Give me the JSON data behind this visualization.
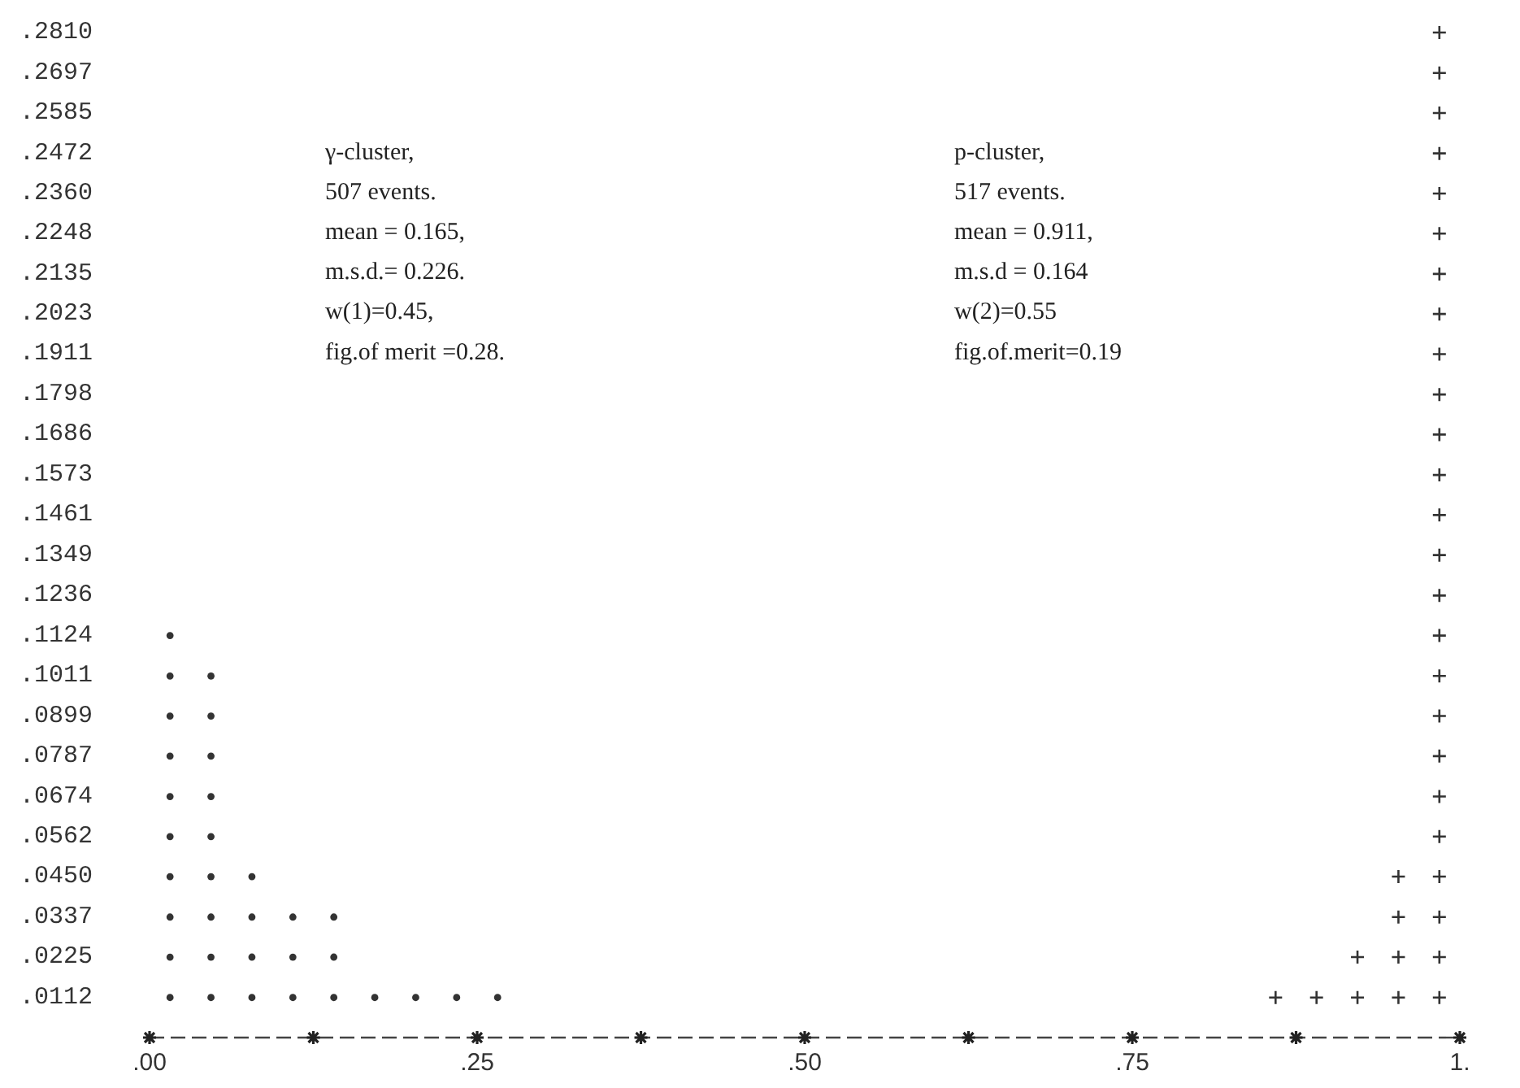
{
  "chart_data": {
    "type": "scatter",
    "series": [
      {
        "color": "#333333",
        "marker": "circle",
        "x": [
          0.015625,
          0.015625,
          0.015625,
          0.015625,
          0.015625,
          0.015625,
          0.015625,
          0.015625,
          0.015625,
          0.015625,
          0.046875,
          0.046875,
          0.046875,
          0.046875,
          0.046875,
          0.046875,
          0.046875,
          0.046875,
          0.046875,
          0.078125,
          0.078125,
          0.078125,
          0.078125,
          0.109375,
          0.109375,
          0.109375,
          0.140625,
          0.140625,
          0.140625,
          0.171875,
          0.203125,
          0.234375,
          0.265625
        ],
        "values": [
          0.0112,
          0.0225,
          0.0337,
          0.045,
          0.0562,
          0.0674,
          0.0787,
          0.0899,
          0.1011,
          0.1124,
          0.0112,
          0.0225,
          0.0337,
          0.045,
          0.0562,
          0.0674,
          0.0787,
          0.0899,
          0.1011,
          0.0112,
          0.0225,
          0.0337,
          0.045,
          0.0112,
          0.0225,
          0.0337,
          0.0112,
          0.0225,
          0.0337,
          0.0112,
          0.0112,
          0.0112,
          0.0112
        ]
      },
      {
        "color": "#333333",
        "marker": "cross",
        "x": [
          0.859375,
          0.890625,
          0.921875,
          0.921875,
          0.953125,
          0.953125,
          0.953125,
          0.953125,
          0.984375,
          0.984375,
          0.984375,
          0.984375,
          0.984375,
          0.984375,
          0.984375,
          0.984375,
          0.984375,
          0.984375,
          0.984375,
          0.984375,
          0.984375,
          0.984375,
          0.984375,
          0.984375,
          0.984375,
          0.984375,
          0.984375,
          0.984375,
          0.984375,
          0.984375,
          0.984375,
          0.984375,
          0.984375
        ],
        "values": [
          0.0112,
          0.0112,
          0.0112,
          0.0225,
          0.0112,
          0.0225,
          0.0337,
          0.045,
          0.0112,
          0.0225,
          0.0337,
          0.045,
          0.0562,
          0.0674,
          0.0787,
          0.0899,
          0.1011,
          0.1124,
          0.1236,
          0.1349,
          0.1461,
          0.1573,
          0.1686,
          0.1798,
          0.1911,
          0.2023,
          0.2135,
          0.2248,
          0.236,
          0.2472,
          0.2585,
          0.2697,
          0.281
        ]
      }
    ],
    "xlim": [
      0,
      1
    ],
    "ylim": [
      0,
      0.281
    ],
    "xticks": [
      {
        "value": 0,
        "label": ".00"
      },
      {
        "value": 0.125,
        "label": null
      },
      {
        "value": 0.25,
        "label": ".25"
      },
      {
        "value": 0.375,
        "label": null
      },
      {
        "value": 0.5,
        "label": ".50"
      },
      {
        "value": 0.625,
        "label": null
      },
      {
        "value": 0.75,
        "label": ".75"
      },
      {
        "value": 0.875,
        "label": null
      },
      {
        "value": 1,
        "label": "1."
      }
    ],
    "yticks": [
      {
        "value": 0.0112,
        "label": ".0112"
      },
      {
        "value": 0.0225,
        "label": ".0225"
      },
      {
        "value": 0.0337,
        "label": ".0337"
      },
      {
        "value": 0.045,
        "label": ".0450"
      },
      {
        "value": 0.0562,
        "label": ".0562"
      },
      {
        "value": 0.0674,
        "label": ".0674"
      },
      {
        "value": 0.0787,
        "label": ".0787"
      },
      {
        "value": 0.0899,
        "label": ".0899"
      },
      {
        "value": 0.1011,
        "label": ".1011"
      },
      {
        "value": 0.1124,
        "label": ".1124"
      },
      {
        "value": 0.1236,
        "label": ".1236"
      },
      {
        "value": 0.1349,
        "label": ".1349"
      },
      {
        "value": 0.1461,
        "label": ".1461"
      },
      {
        "value": 0.1573,
        "label": ".1573"
      },
      {
        "value": 0.1686,
        "label": ".1686"
      },
      {
        "value": 0.1798,
        "label": ".1798"
      },
      {
        "value": 0.1911,
        "label": ".1911"
      },
      {
        "value": 0.2023,
        "label": ".2023"
      },
      {
        "value": 0.2135,
        "label": ".2135"
      },
      {
        "value": 0.2248,
        "label": ".2248"
      },
      {
        "value": 0.236,
        "label": ".2360"
      },
      {
        "value": 0.2472,
        "label": ".2472"
      },
      {
        "value": 0.2585,
        "label": ".2585"
      },
      {
        "value": 0.2697,
        "label": ".2697"
      },
      {
        "value": 0.281,
        "label": ".2810"
      }
    ],
    "annotations": [
      "γ-cluster,\n507 events.\nmean = 0.165,\nm.s.d.= 0.226.\nw(1)=0.45,\nfig.of merit =0.28.",
      "p-cluster,\n517 events.\nmean = 0.911,\nm.s.d = 0.164\nw(2)=0.55\nfig.of.merit=0.19"
    ]
  }
}
